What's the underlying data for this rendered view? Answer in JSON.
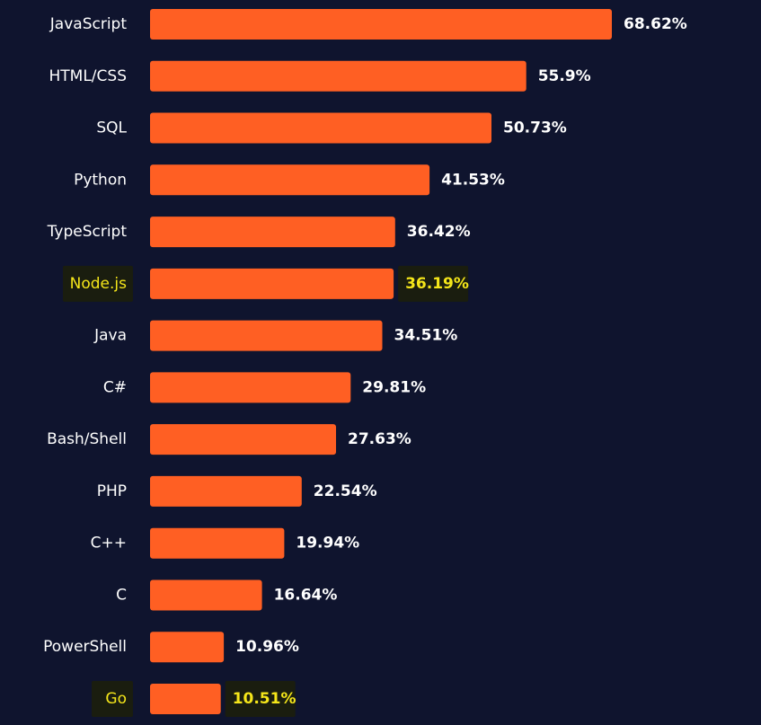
{
  "colors": {
    "background": "#0f142e",
    "bar": "#ff5f23",
    "text": "#ffffff",
    "highlight_text": "#f5e61a",
    "highlight_bg": "#1a1d0f"
  },
  "chart_data": {
    "type": "bar",
    "orientation": "horizontal",
    "title": "",
    "xlabel": "",
    "ylabel": "",
    "xlim": [
      0,
      68.62
    ],
    "grid": false,
    "value_format": "percent",
    "categories": [
      "JavaScript",
      "HTML/CSS",
      "SQL",
      "Python",
      "TypeScript",
      "Node.js",
      "Java",
      "C#",
      "Bash/Shell",
      "PHP",
      "C++",
      "C",
      "PowerShell",
      "Go"
    ],
    "values": [
      68.62,
      55.9,
      50.73,
      41.53,
      36.42,
      36.19,
      34.51,
      29.81,
      27.63,
      22.54,
      19.94,
      16.64,
      10.96,
      10.51
    ],
    "value_labels": [
      "68.62%",
      "55.9%",
      "50.73%",
      "41.53%",
      "36.42%",
      "36.19%",
      "34.51%",
      "29.81%",
      "27.63%",
      "22.54%",
      "19.94%",
      "16.64%",
      "10.96%",
      "10.51%"
    ],
    "highlighted": [
      "Node.js",
      "Go"
    ]
  }
}
